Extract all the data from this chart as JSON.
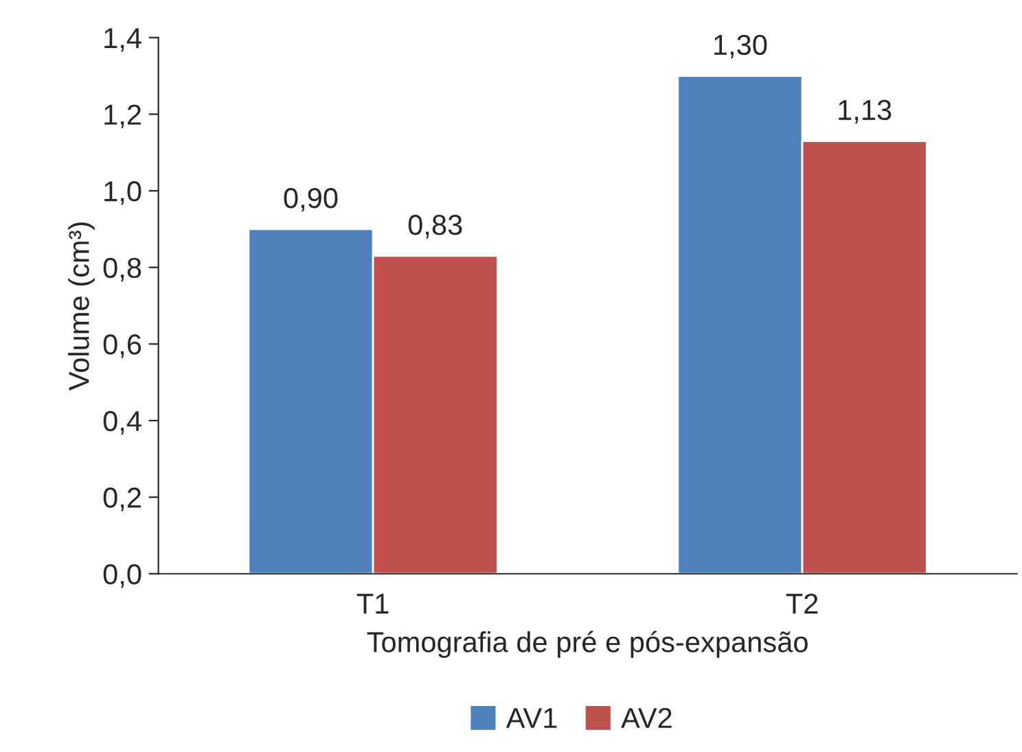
{
  "chart_data": {
    "type": "bar",
    "xlabel": "Tomografia de pré e pós-expansão",
    "ylabel": "Volume (cm³)",
    "categories": [
      "T1",
      "T2"
    ],
    "series": [
      {
        "name": "AV1",
        "color": "#4f81bd",
        "values": [
          0.9,
          1.3
        ],
        "value_labels": [
          "0,90",
          "1,30"
        ]
      },
      {
        "name": "AV2",
        "color": "#c0504d",
        "values": [
          0.83,
          1.13
        ],
        "value_labels": [
          "0,83",
          "1,13"
        ]
      }
    ],
    "ylim": [
      0,
      1.4
    ],
    "yticks": [
      {
        "value": 0,
        "label": "0,0"
      },
      {
        "value": 0.2,
        "label": "0,2"
      },
      {
        "value": 0.4,
        "label": "0,4"
      },
      {
        "value": 0.6,
        "label": "0,6"
      },
      {
        "value": 0.8,
        "label": "0,8"
      },
      {
        "value": 1.0,
        "label": "1,0"
      },
      {
        "value": 1.2,
        "label": "1,2"
      },
      {
        "value": 1.4,
        "label": "1,4"
      }
    ],
    "grid": false,
    "legend": "bottom"
  }
}
